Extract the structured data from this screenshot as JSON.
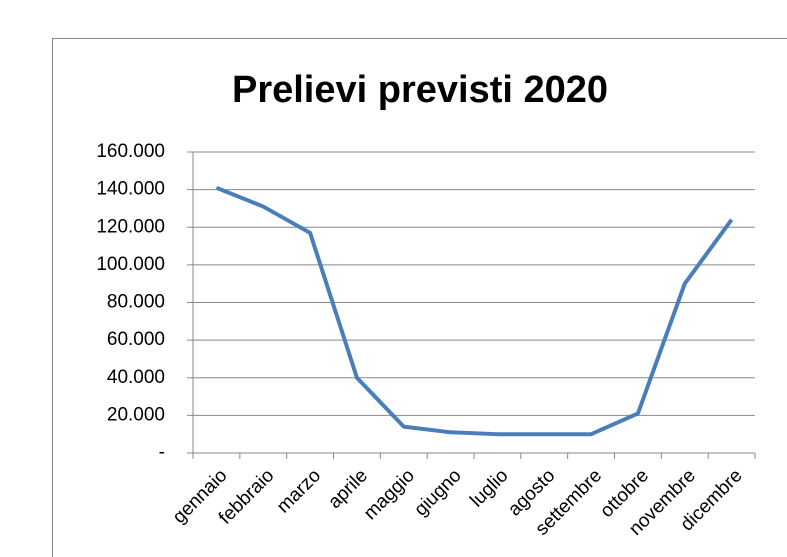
{
  "chart_data": {
    "type": "line",
    "title": "Prelievi previsti 2020",
    "categories": [
      "gennaio",
      "febbraio",
      "marzo",
      "aprile",
      "maggio",
      "giugno",
      "luglio",
      "agosto",
      "settembre",
      "ottobre",
      "novembre",
      "dicembre"
    ],
    "series": [
      {
        "name": "Prelievi",
        "color": "#4a7ebb",
        "values": [
          141000,
          131000,
          117000,
          40000,
          14000,
          11000,
          10000,
          10000,
          10000,
          21000,
          90000,
          124000
        ]
      }
    ],
    "ylim": [
      0,
      160000
    ],
    "yticks": [
      {
        "value": 0,
        "label": "-"
      },
      {
        "value": 20000,
        "label": "20.000"
      },
      {
        "value": 40000,
        "label": "40.000"
      },
      {
        "value": 60000,
        "label": "60.000"
      },
      {
        "value": 80000,
        "label": "80.000"
      },
      {
        "value": 100000,
        "label": "100.000"
      },
      {
        "value": 120000,
        "label": "120.000"
      },
      {
        "value": 140000,
        "label": "140.000"
      },
      {
        "value": 160000,
        "label": "160.000"
      }
    ],
    "grid": true
  }
}
